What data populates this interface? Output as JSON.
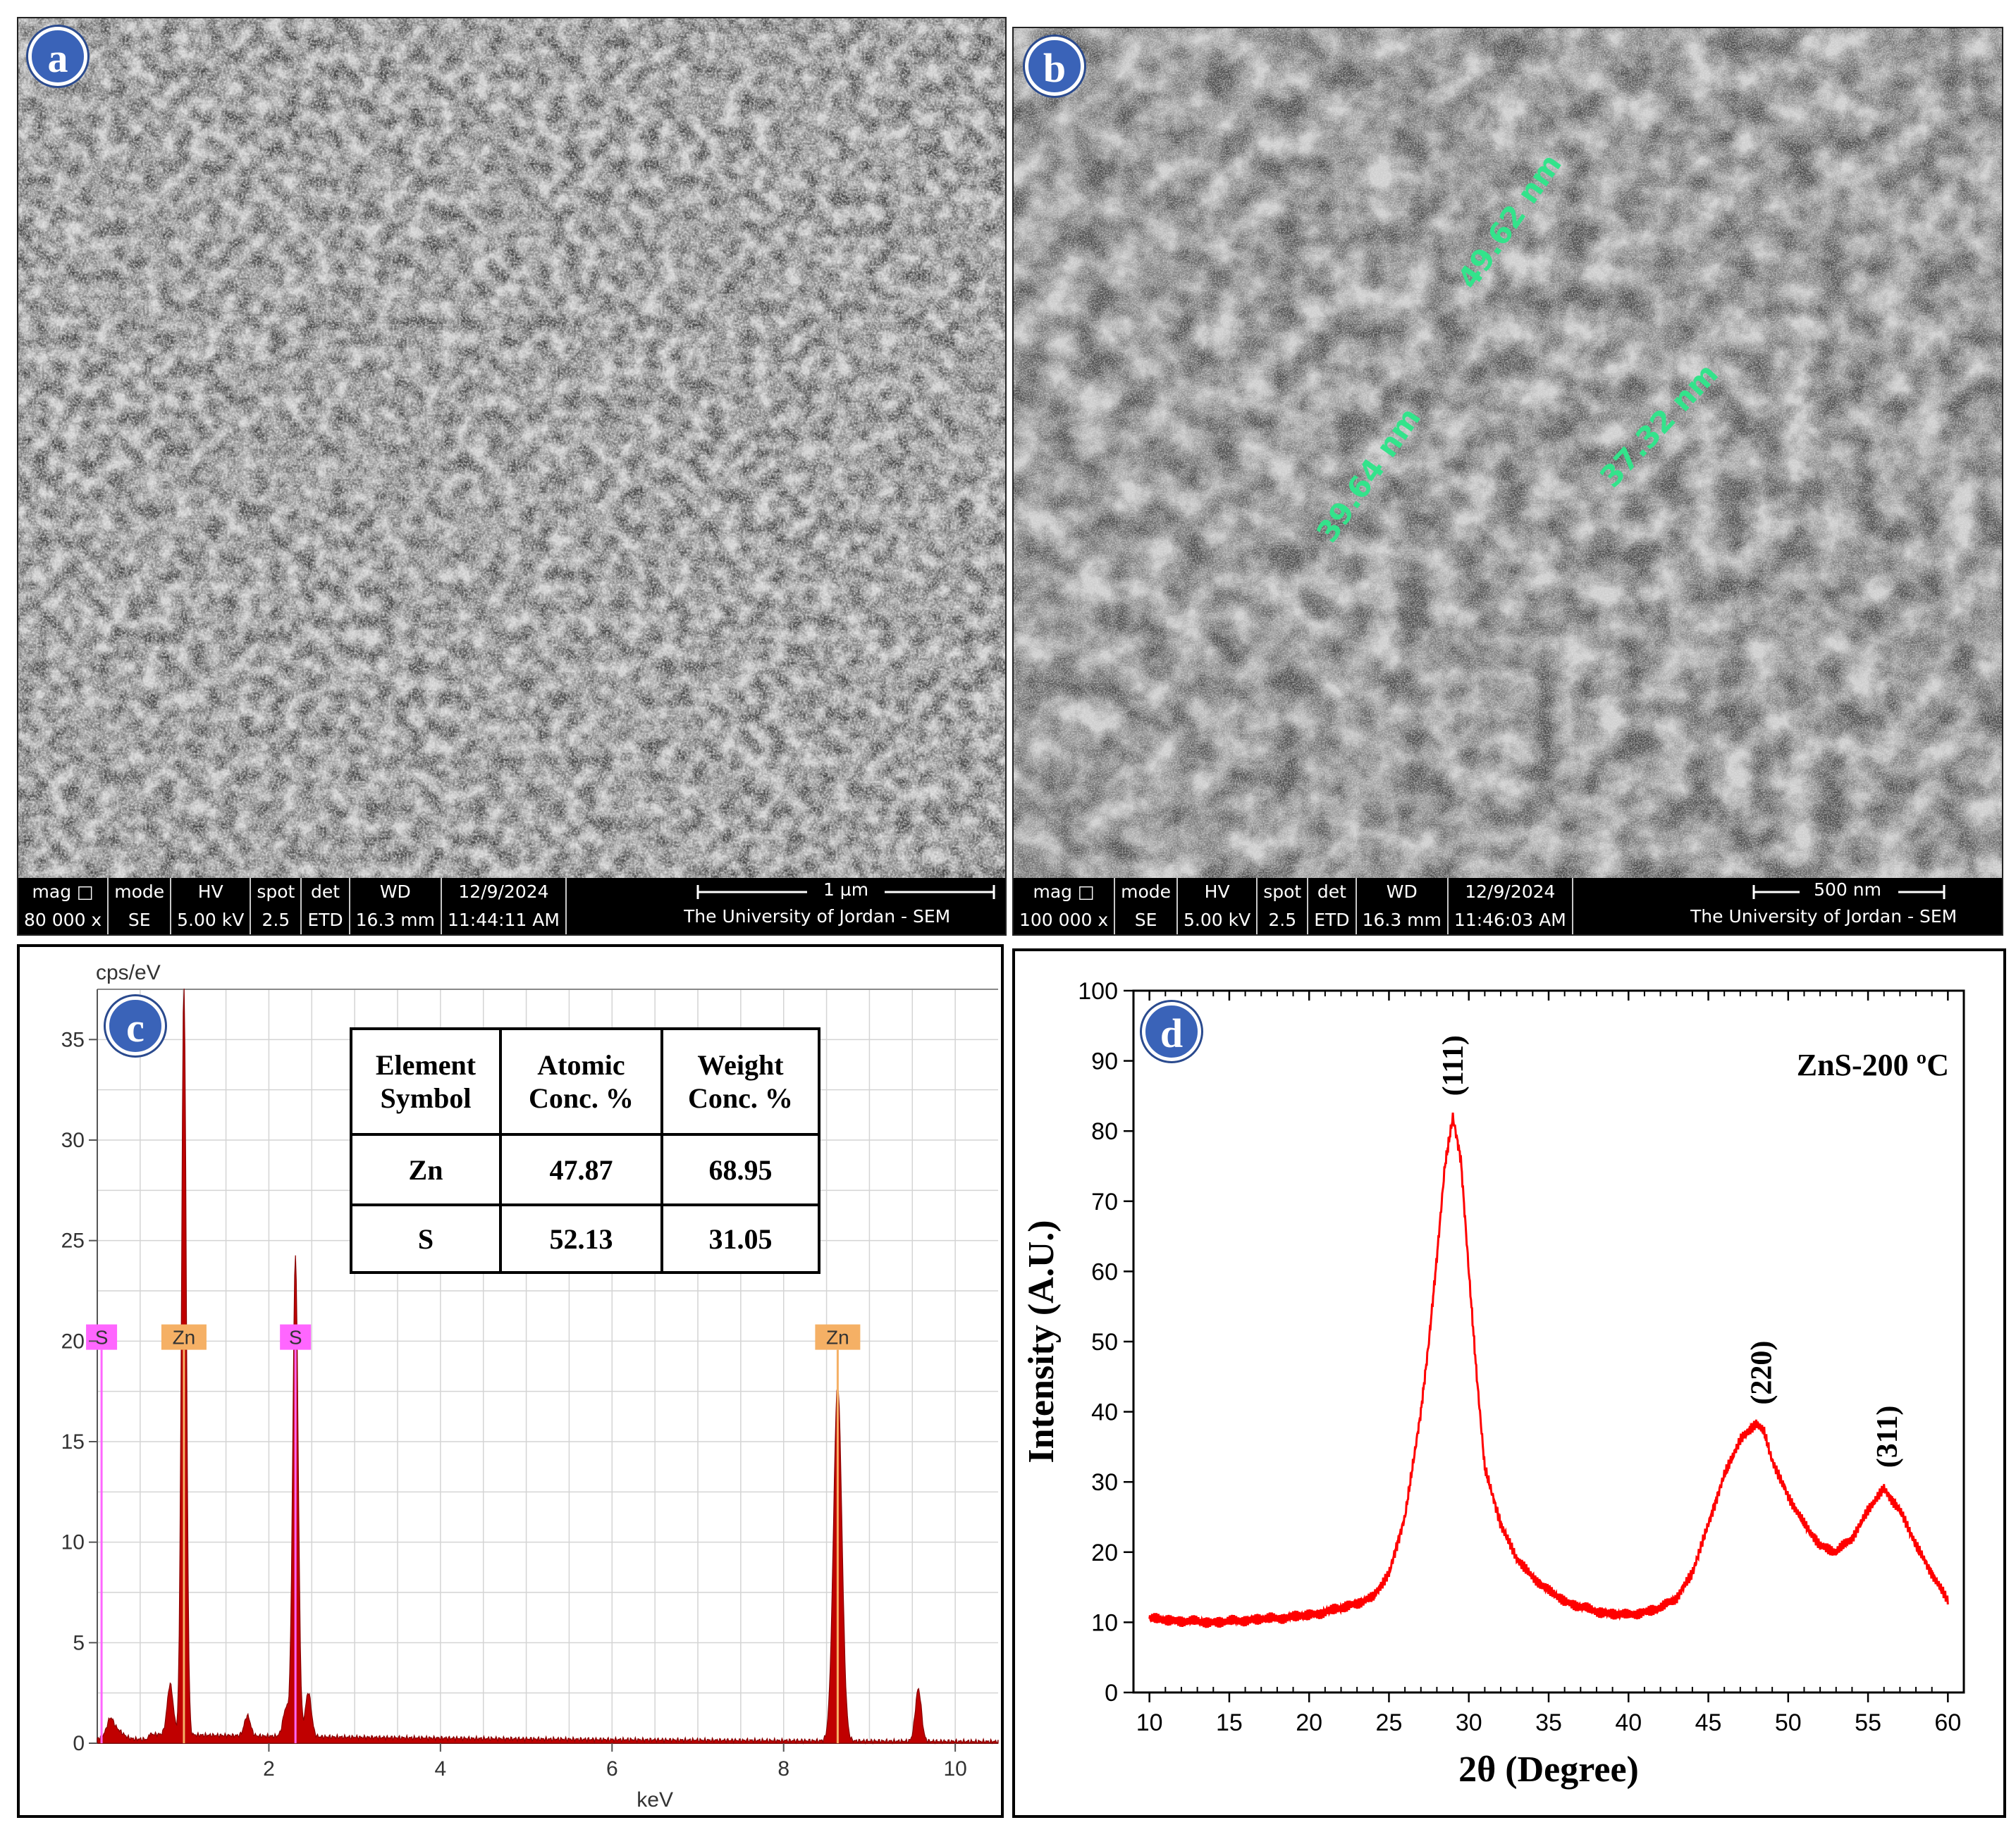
{
  "panels": {
    "a": {
      "label": "a",
      "databar": {
        "headers": [
          "mag □",
          "mode",
          "HV",
          "spot",
          "det",
          "WD",
          "12/9/2024"
        ],
        "values": [
          "80 000 x",
          "SE",
          "5.00 kV",
          "2.5",
          "ETD",
          "16.3 mm",
          "11:44:11 AM"
        ],
        "scale_label": "1 µm",
        "institution": "The University of Jordan - SEM"
      }
    },
    "b": {
      "label": "b",
      "databar": {
        "headers": [
          "mag □",
          "mode",
          "HV",
          "spot",
          "det",
          "WD",
          "12/9/2024"
        ],
        "values": [
          "100 000 x",
          "SE",
          "5.00 kV",
          "2.5",
          "ETD",
          "16.3 mm",
          "11:46:03 AM"
        ],
        "scale_label": "500 nm",
        "institution": "The University of Jordan - SEM"
      },
      "measurements": [
        "49.62 nm",
        "39.64 nm",
        "37.32 nm"
      ]
    },
    "c": {
      "label": "c",
      "table": {
        "headers": [
          [
            "Element",
            "Symbol"
          ],
          [
            "Atomic",
            "Conc. %"
          ],
          [
            "Weight",
            "Conc. %"
          ]
        ],
        "rows": [
          [
            "Zn",
            "47.87",
            "68.95"
          ],
          [
            "S",
            "52.13",
            "31.05"
          ]
        ]
      }
    },
    "d": {
      "label": "d"
    }
  },
  "chart_data": [
    {
      "type": "line",
      "title": "",
      "ylabel": "cps/eV",
      "xlabel": "keV",
      "xlim": [
        0,
        10.5
      ],
      "ylim": [
        0,
        37.5
      ],
      "xticks": [
        2,
        4,
        6,
        8,
        10
      ],
      "yticks": [
        0,
        5,
        10,
        15,
        20,
        25,
        30,
        35
      ],
      "peaks": [
        {
          "x": 0.15,
          "y": 0.6
        },
        {
          "x": 0.85,
          "y": 2.5
        },
        {
          "x": 1.01,
          "y": 37.3
        },
        {
          "x": 1.75,
          "y": 1.0
        },
        {
          "x": 2.2,
          "y": 1.4
        },
        {
          "x": 2.31,
          "y": 23.9
        },
        {
          "x": 2.46,
          "y": 2.2
        },
        {
          "x": 8.63,
          "y": 17.7
        },
        {
          "x": 9.57,
          "y": 2.6
        }
      ],
      "element_markers": [
        {
          "label": "S",
          "x": 0.05,
          "color": "#ff66ff"
        },
        {
          "label": "Zn",
          "x": 1.01,
          "color": "#f5b065"
        },
        {
          "label": "S",
          "x": 2.31,
          "color": "#ff66ff"
        },
        {
          "label": "Zn",
          "x": 8.63,
          "color": "#f5b065"
        }
      ],
      "marker_y": 20.2,
      "spectrum_color": "#c00000"
    },
    {
      "type": "line",
      "title": "ZnS-200 ºC",
      "xlabel": "2θ (Degree)",
      "ylabel": "Intensity (A.U.)",
      "xlim": [
        9,
        61
      ],
      "ylim": [
        0,
        100
      ],
      "xticks": [
        10,
        15,
        20,
        25,
        30,
        35,
        40,
        45,
        50,
        55,
        60
      ],
      "yticks": [
        0,
        10,
        20,
        30,
        40,
        50,
        60,
        70,
        80,
        90,
        100
      ],
      "series": [
        {
          "name": "ZnS-200",
          "color": "#ff0000",
          "x": [
            10,
            12,
            14,
            16,
            18,
            20,
            22,
            24,
            25,
            26,
            27,
            27.5,
            28,
            28.5,
            29,
            29.5,
            30,
            30.5,
            31,
            32,
            33,
            34,
            35,
            36,
            38,
            40,
            42,
            43,
            44,
            45,
            46,
            47,
            48,
            48.5,
            49,
            50,
            51,
            52,
            53,
            54,
            55,
            56,
            57,
            58,
            59,
            60
          ],
          "y": [
            10.5,
            10.2,
            10,
            10.3,
            10.6,
            11,
            12,
            13.5,
            17,
            25,
            40,
            50,
            62,
            75,
            82,
            76,
            60,
            45,
            32,
            24,
            19,
            16.5,
            14.5,
            13,
            11.5,
            11,
            12,
            13.5,
            17,
            24,
            31,
            36,
            38.5,
            37,
            33,
            28,
            24,
            21,
            20,
            22,
            26,
            29,
            26,
            21,
            17,
            13
          ]
        }
      ],
      "peak_labels": [
        {
          "text": "(111)",
          "x": 29,
          "y": 85
        },
        {
          "text": "(220)",
          "x": 48.3,
          "y": 41
        },
        {
          "text": "(311)",
          "x": 56.2,
          "y": 32
        }
      ]
    }
  ]
}
